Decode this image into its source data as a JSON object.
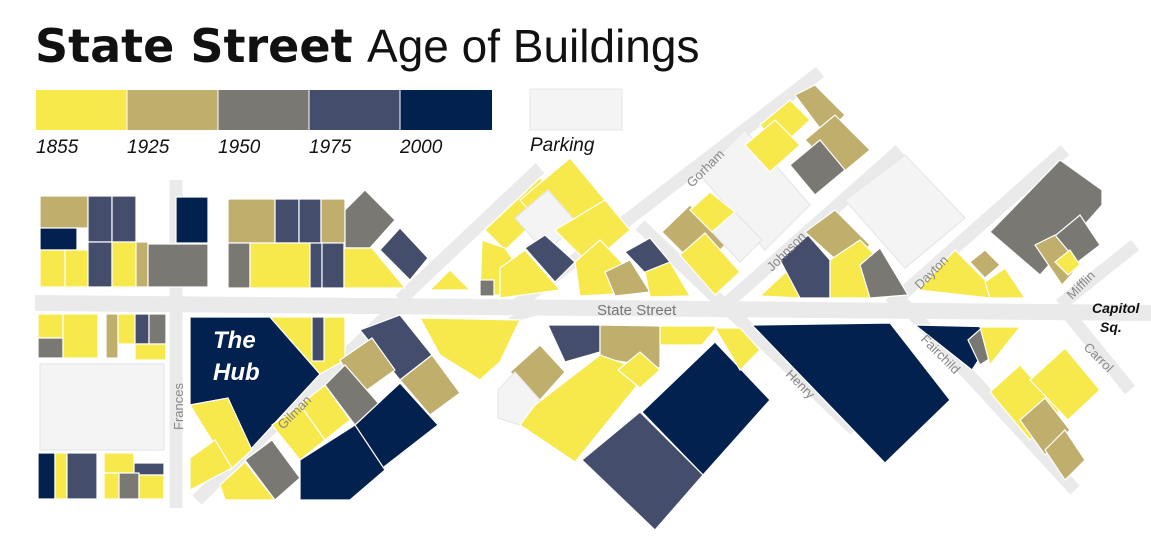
{
  "title": {
    "bold": "State Street",
    "light": "Age of Buildings"
  },
  "legend": {
    "colors": [
      "#f7e84c",
      "#bfae6c",
      "#7a7873",
      "#444d6b",
      "#03214e"
    ],
    "years": [
      "1855",
      "1925",
      "1950",
      "1975",
      "2000"
    ],
    "parking_label": "Parking",
    "parking_color": "#f4f4f4"
  },
  "streets": {
    "state": "State Street",
    "frances": "Frances",
    "gilman": "Gilman",
    "gorham": "Gorham",
    "johnson": "Johnson",
    "henry": "Henry",
    "dayton": "Dayton",
    "fairchild": "Fairchild",
    "mifflin": "Mifflin",
    "carrol": "Carrol"
  },
  "landmarks": {
    "hub": "The Hub",
    "capitol_line1": "Capitol",
    "capitol_line2": "Sq."
  },
  "colors": {
    "street": "#eaeaea",
    "ink": "#111111"
  }
}
